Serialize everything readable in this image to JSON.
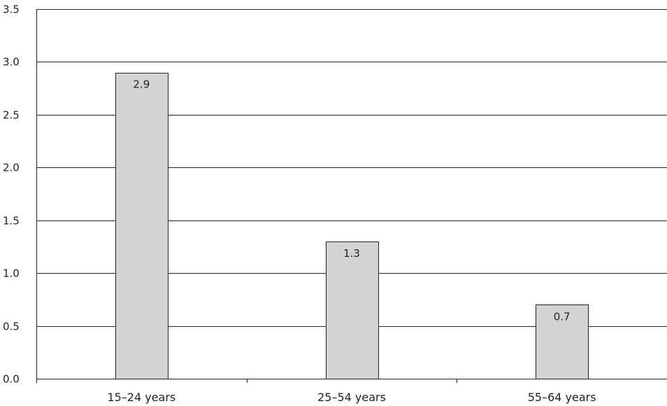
{
  "chart_data": {
    "type": "bar",
    "title": "",
    "xlabel": "",
    "ylabel": "",
    "categories": [
      "15–24 years",
      "25–54 years",
      "55–64 years"
    ],
    "values": [
      2.9,
      1.3,
      0.7
    ],
    "data_labels": [
      "2.9",
      "1.3",
      "0.7"
    ],
    "ylim": [
      0,
      3.5
    ],
    "yticks": [
      0,
      0.5,
      1.0,
      1.5,
      2.0,
      2.5,
      3.0,
      3.5
    ],
    "ytick_labels": [
      "0.0",
      "0.5",
      "1.0",
      "1.5",
      "2.0",
      "2.5",
      "3.0",
      "3.5"
    ],
    "grid": true,
    "legend": "none"
  },
  "colors": {
    "bar_fill": "#d3d3d3",
    "bar_stroke": "#222222",
    "grid": "#222222",
    "axis": "#222222"
  }
}
